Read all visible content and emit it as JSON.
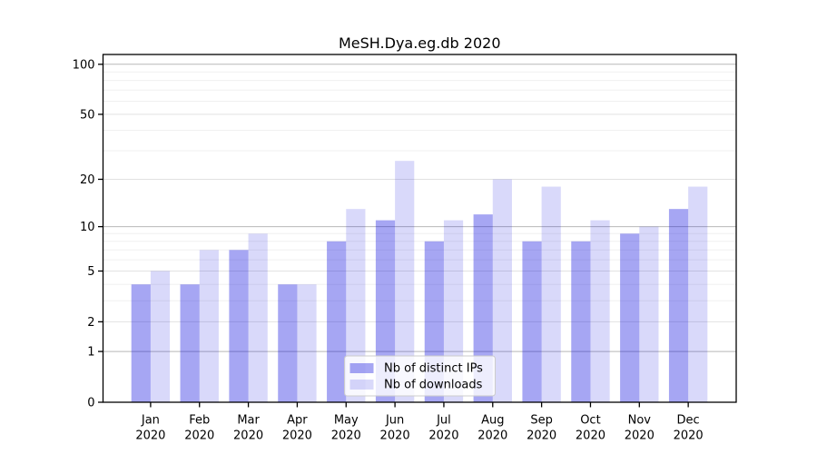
{
  "page": {
    "background": "#ffffff"
  },
  "chart_data": {
    "type": "bar",
    "title": "MeSH.Dya.eg.db 2020",
    "categories": [
      "Jan",
      "Feb",
      "Mar",
      "Apr",
      "May",
      "Jun",
      "Jul",
      "Aug",
      "Sep",
      "Oct",
      "Nov",
      "Dec"
    ],
    "category_year": "2020",
    "series": [
      {
        "name": "Nb of distinct IPs",
        "color": "rgba(0,0,220,0.35)",
        "values": [
          4,
          4,
          7,
          4,
          8,
          11,
          8,
          12,
          8,
          8,
          9,
          13
        ]
      },
      {
        "name": "Nb of downloads",
        "color": "rgba(0,0,220,0.15)",
        "values": [
          5,
          7,
          9,
          4,
          13,
          26,
          11,
          20,
          18,
          11,
          10,
          18
        ]
      }
    ],
    "y_axis": {
      "scale": "log10(value+1)",
      "tick_values": [
        0,
        1,
        2,
        5,
        10,
        20,
        50,
        100
      ],
      "range": [
        0,
        100
      ]
    },
    "x_axis": {
      "label_line2": "2020"
    },
    "grid": {
      "decade_values": [
        1,
        10,
        100
      ],
      "mid_values": [
        2,
        5,
        20,
        50
      ],
      "minor_values": [
        3,
        4,
        6,
        7,
        8,
        9,
        30,
        40,
        60,
        70,
        80,
        90
      ],
      "decade_color": "#b8b8b8",
      "mid_color": "#e2e2e2",
      "minor_color": "#f0f0f0"
    },
    "legend": {
      "entries": [
        "Nb of distinct IPs",
        "Nb of downloads"
      ],
      "position": "lower-center",
      "background": "rgba(255,255,255,0.8)",
      "border_color": "#cccccc"
    },
    "axis_color": "#000000",
    "text_color": "#000000"
  }
}
